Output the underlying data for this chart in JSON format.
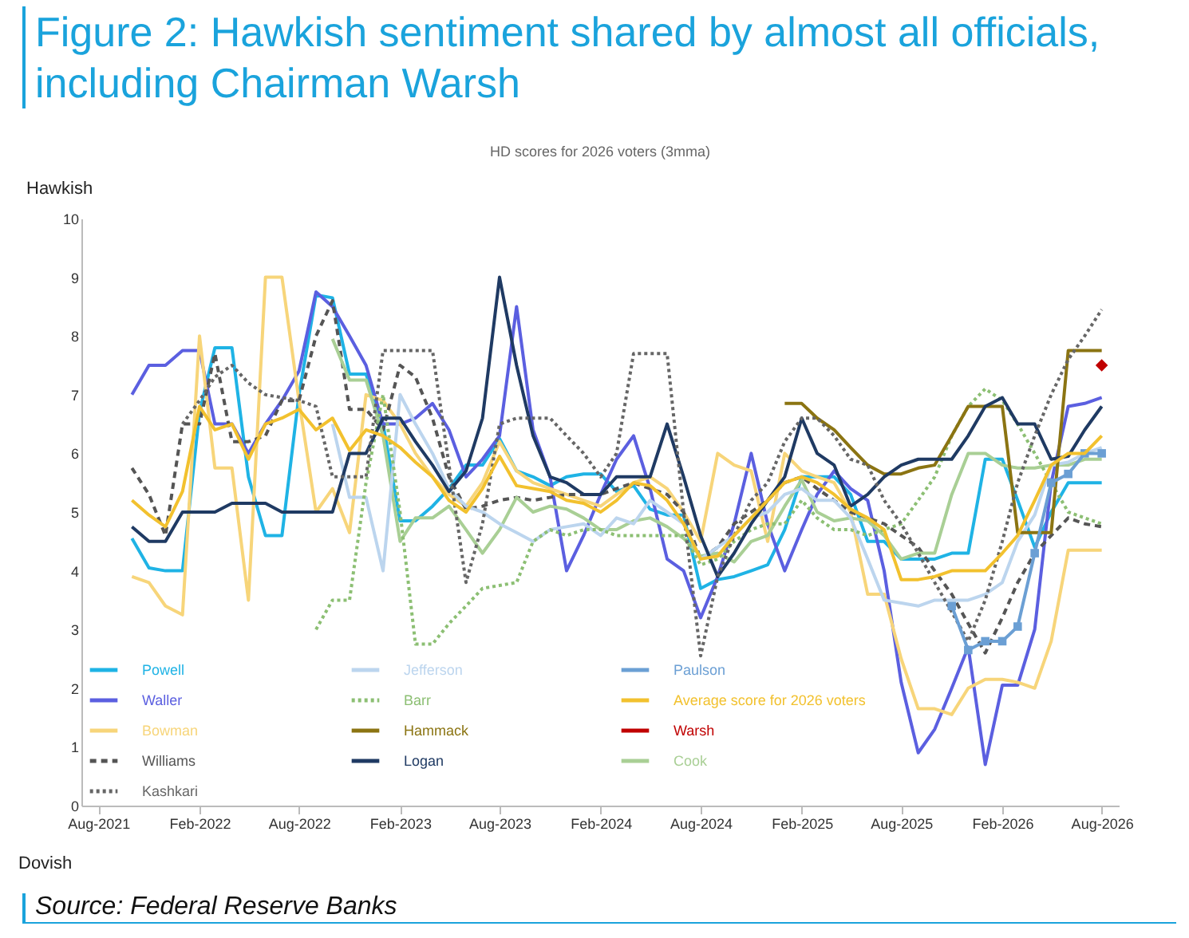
{
  "chart_data": {
    "type": "line",
    "title": "Figure 2: Hawkish sentiment shared by almost all officials, including Chairman Warsh",
    "subtitle": "HD scores for 2026 voters (3mma)",
    "ylabel": "Hawkish",
    "xlabel": "Dovish",
    "annotations": [
      "Source: Federal Reserve Banks"
    ],
    "x": [
      "2021-10",
      "2021-11",
      "2021-12",
      "2022-01",
      "2022-02",
      "2022-03",
      "2022-04",
      "2022-05",
      "2022-06",
      "2022-07",
      "2022-08",
      "2022-09",
      "2022-10",
      "2022-11",
      "2022-12",
      "2023-01",
      "2023-02",
      "2023-03",
      "2023-04",
      "2023-05",
      "2023-06",
      "2023-07",
      "2023-08",
      "2023-09",
      "2023-10",
      "2023-11",
      "2023-12",
      "2024-01",
      "2024-02",
      "2024-03",
      "2024-04",
      "2024-05",
      "2024-06",
      "2024-07",
      "2024-08",
      "2024-09",
      "2024-10",
      "2024-11",
      "2024-12",
      "2025-01",
      "2025-02",
      "2025-03",
      "2025-04",
      "2025-05",
      "2025-06",
      "2025-07",
      "2025-08",
      "2025-09",
      "2025-10",
      "2025-11",
      "2025-12",
      "2026-01",
      "2026-02",
      "2026-03",
      "2026-04",
      "2026-05",
      "2026-06",
      "2026-07",
      "2026-08"
    ],
    "xlim": [
      "2021-07",
      "2026-09"
    ],
    "xticks": [
      {
        "value": "2021-08",
        "label": "Aug-2021"
      },
      {
        "value": "2022-02",
        "label": "Feb-2022"
      },
      {
        "value": "2022-08",
        "label": "Aug-2022"
      },
      {
        "value": "2023-02",
        "label": "Feb-2023"
      },
      {
        "value": "2023-08",
        "label": "Aug-2023"
      },
      {
        "value": "2024-02",
        "label": "Feb-2024"
      },
      {
        "value": "2024-08",
        "label": "Aug-2024"
      },
      {
        "value": "2025-02",
        "label": "Feb-2025"
      },
      {
        "value": "2025-08",
        "label": "Aug-2025"
      },
      {
        "value": "2026-02",
        "label": "Feb-2026"
      },
      {
        "value": "2026-08",
        "label": "Aug-2026"
      }
    ],
    "ylim": [
      0,
      10
    ],
    "yticks": [
      0,
      1,
      2,
      3,
      4,
      5,
      6,
      7,
      8,
      9,
      10
    ],
    "legend": "bottom left",
    "line_style": "solid",
    "marker": "none",
    "series": [
      {
        "name": "Powell",
        "color": "#1fb3e5",
        "values": [
          4.55,
          4.05,
          4,
          4,
          6.7,
          7.8,
          7.8,
          5.6,
          4.6,
          4.6,
          7,
          8.7,
          8.65,
          7.35,
          7.35,
          6.5,
          4.85,
          4.85,
          5.1,
          5.4,
          5.8,
          5.8,
          6.25,
          5.7,
          5.6,
          5.45,
          5.6,
          5.65,
          5.65,
          5.35,
          5.45,
          5.05,
          4.95,
          4.95,
          3.7,
          3.85,
          3.9,
          4,
          4.1,
          4.7,
          5.6,
          5.6,
          5.6,
          5.3,
          4.5,
          4.5,
          4.2,
          4.2,
          4.2,
          4.3,
          4.3,
          5.9,
          5.9,
          5.2,
          4.4,
          5,
          5.5,
          5.5,
          5.5
        ]
      },
      {
        "name": "Waller",
        "color": "#5b5fe0",
        "values": [
          7,
          7.5,
          7.5,
          7.75,
          7.75,
          6.5,
          6.5,
          6,
          6.5,
          6.9,
          7.4,
          8.75,
          8.5,
          8,
          7.5,
          6.5,
          6.5,
          6.6,
          6.85,
          6.4,
          5.6,
          5.9,
          6.3,
          8.5,
          6.4,
          5.6,
          4,
          4.6,
          5.3,
          5.9,
          6.3,
          5.4,
          4.2,
          4,
          3.2,
          3.9,
          4.8,
          6,
          4.8,
          4,
          4.7,
          5.3,
          5.7,
          5.4,
          5.2,
          4,
          2.1,
          0.9,
          1.3,
          2,
          2.7,
          0.7,
          2.05,
          2.05,
          3,
          5.5,
          6.8,
          6.85,
          6.95
        ]
      },
      {
        "name": "Bowman",
        "color": "#f7d57a",
        "values": [
          3.9,
          3.8,
          3.4,
          3.25,
          8,
          5.75,
          5.75,
          3.5,
          9,
          9,
          6.9,
          5,
          5.4,
          4.65,
          7,
          6.9,
          6.5,
          6,
          5.6,
          5.3,
          5.1,
          5.5,
          6.2,
          5.7,
          5.5,
          5.4,
          5.3,
          5.2,
          5.1,
          5.3,
          5.5,
          5.6,
          5.4,
          5,
          4.5,
          6,
          5.8,
          5.7,
          4.5,
          6,
          5.7,
          5.6,
          5.5,
          5,
          3.6,
          3.6,
          2.5,
          1.65,
          1.65,
          1.55,
          2,
          2.15,
          2.15,
          2.1,
          2,
          2.8,
          4.35,
          4.35,
          4.35
        ]
      },
      {
        "name": "Williams",
        "color": "#555555",
        "line_style": "dashed",
        "values": [
          5.75,
          5.3,
          4.6,
          6.5,
          6.5,
          7.7,
          6.2,
          6.2,
          6.3,
          6.9,
          6.9,
          8,
          8.6,
          6.75,
          6.75,
          6.4,
          7.5,
          7.3,
          6.6,
          5.6,
          5.05,
          5.1,
          5.2,
          5.25,
          5.2,
          5.25,
          5.3,
          5.3,
          5.3,
          5.4,
          5.5,
          5.4,
          5.3,
          5,
          4.2,
          4.4,
          4.8,
          5,
          5.2,
          5.5,
          5.6,
          5.4,
          5.2,
          5,
          4.9,
          4.8,
          4.6,
          4.4,
          4,
          3.6,
          3.1,
          2.6,
          3.2,
          3.8,
          4.3,
          4.6,
          4.9,
          4.8,
          4.75
        ]
      },
      {
        "name": "Cook",
        "color": "#a9cf95",
        "values": [
          null,
          null,
          null,
          null,
          null,
          null,
          null,
          null,
          null,
          null,
          null,
          null,
          7.95,
          7.25,
          7.25,
          6.3,
          4.5,
          4.9,
          4.9,
          5.1,
          4.7,
          4.3,
          4.7,
          5.25,
          5,
          5.1,
          5.05,
          4.9,
          4.7,
          4.7,
          4.85,
          4.9,
          4.75,
          4.55,
          4.25,
          4.3,
          4.15,
          4.5,
          4.6,
          5.1,
          5.55,
          5,
          4.85,
          4.9,
          4.85,
          4.6,
          4.2,
          4.3,
          4.3,
          5.3,
          6,
          6,
          5.8,
          5.75,
          5.75,
          5.8,
          5.8,
          5.9,
          5.9
        ]
      },
      {
        "name": "Jefferson",
        "color": "#bcd5ee",
        "values": [
          null,
          null,
          null,
          null,
          null,
          null,
          null,
          null,
          null,
          null,
          null,
          null,
          6.5,
          5.25,
          5.25,
          4,
          7,
          6.5,
          6,
          5.4,
          5.1,
          5,
          4.8,
          4.65,
          4.5,
          4.7,
          4.75,
          4.8,
          4.6,
          4.9,
          4.8,
          5.2,
          5,
          4.8,
          4.2,
          4.4,
          4.6,
          4.9,
          5,
          5.3,
          5.4,
          5.2,
          5.2,
          4.9,
          4.2,
          3.5,
          3.45,
          3.4,
          3.5,
          3.5,
          3.5,
          3.6,
          3.8,
          4.5,
          4.95,
          5.8,
          5.85,
          6,
          6.1
        ]
      },
      {
        "name": "Barr",
        "color": "#8cbf73",
        "line_style": "dotted",
        "values": [
          null,
          null,
          null,
          null,
          null,
          null,
          null,
          null,
          null,
          null,
          null,
          3,
          3.5,
          3.5,
          5.5,
          7,
          5,
          2.75,
          2.75,
          3.1,
          3.4,
          3.7,
          3.75,
          3.8,
          4.5,
          4.7,
          4.6,
          4.7,
          4.7,
          4.6,
          4.6,
          4.6,
          4.6,
          4.6,
          4.1,
          4.2,
          4.5,
          4.7,
          4.8,
          4.8,
          5.2,
          4.9,
          4.7,
          4.7,
          4.6,
          4.7,
          4.8,
          5.2,
          5.6,
          6.3,
          6.8,
          7.1,
          6.9,
          6.5,
          6,
          5.5,
          5,
          4.9,
          4.8
        ]
      },
      {
        "name": "Hammack",
        "color": "#8b7412",
        "values": [
          null,
          null,
          null,
          null,
          null,
          null,
          null,
          null,
          null,
          null,
          null,
          null,
          null,
          null,
          null,
          null,
          null,
          null,
          null,
          null,
          null,
          null,
          null,
          null,
          null,
          null,
          null,
          null,
          null,
          null,
          null,
          null,
          null,
          null,
          null,
          null,
          null,
          null,
          null,
          6.85,
          6.85,
          6.6,
          6.4,
          6.1,
          5.8,
          5.65,
          5.65,
          5.75,
          5.8,
          6.3,
          6.8,
          6.8,
          6.8,
          4.65,
          4.65,
          4.65,
          7.75,
          7.75,
          7.75
        ]
      },
      {
        "name": "Logan",
        "color": "#1f3a63",
        "values": [
          4.75,
          4.5,
          4.5,
          5,
          5,
          5,
          5.15,
          5.15,
          5.15,
          5,
          5,
          5,
          5,
          6,
          6,
          6.6,
          6.6,
          6.2,
          5.8,
          5.35,
          5.7,
          6.6,
          9,
          7.5,
          6.3,
          5.6,
          5.5,
          5.3,
          5.3,
          5.6,
          5.6,
          5.6,
          6.5,
          5.6,
          4.6,
          3.9,
          4.3,
          4.8,
          5.2,
          5.6,
          6.6,
          6,
          5.8,
          5.1,
          5.3,
          5.6,
          5.8,
          5.9,
          5.9,
          5.9,
          6.3,
          6.8,
          6.95,
          6.5,
          6.5,
          5.9,
          5.95,
          6.4,
          6.8
        ]
      },
      {
        "name": "Kashkari",
        "color": "#666666",
        "line_style": "dotted",
        "values": [
          null,
          null,
          null,
          6.5,
          6.9,
          7.3,
          7.5,
          7.2,
          7,
          6.95,
          6.9,
          6.8,
          5.6,
          5.6,
          5.6,
          7.75,
          7.75,
          7.75,
          7.75,
          5.8,
          3.8,
          4.8,
          6.5,
          6.6,
          6.6,
          6.6,
          6.3,
          6,
          5.6,
          6,
          7.7,
          7.7,
          7.7,
          5,
          2.55,
          3.9,
          4.6,
          5.2,
          5.5,
          6.2,
          6.6,
          6.6,
          6.3,
          5.9,
          5.8,
          5.2,
          4.8,
          4.3,
          3.8,
          3.3,
          2.8,
          3.5,
          4.5,
          5.5,
          6.3,
          7,
          7.6,
          8,
          8.45
        ]
      },
      {
        "name": "Paulson",
        "color": "#6b9fd4",
        "marker": "square",
        "values": [
          null,
          null,
          null,
          null,
          null,
          null,
          null,
          null,
          null,
          null,
          null,
          null,
          null,
          null,
          null,
          null,
          null,
          null,
          null,
          null,
          null,
          null,
          null,
          null,
          null,
          null,
          null,
          null,
          null,
          null,
          null,
          null,
          null,
          null,
          null,
          null,
          null,
          null,
          null,
          null,
          null,
          null,
          null,
          null,
          null,
          null,
          null,
          null,
          null,
          3.4,
          2.65,
          2.8,
          2.8,
          3.05,
          4.3,
          5.5,
          5.65,
          6,
          6
        ]
      },
      {
        "name": "Average score for 2026 voters",
        "color": "#f2c12e",
        "values": [
          5.2,
          4.95,
          4.75,
          5.35,
          6.8,
          6.4,
          6.5,
          5.9,
          6.5,
          6.6,
          6.75,
          6.4,
          6.6,
          6.05,
          6.4,
          6.3,
          6.1,
          5.85,
          5.6,
          5.2,
          5,
          5.4,
          5.95,
          5.45,
          5.4,
          5.35,
          5.2,
          5.15,
          5,
          5.2,
          5.5,
          5.45,
          5.2,
          4.8,
          4.2,
          4.25,
          4.6,
          4.9,
          5.2,
          5.5,
          5.6,
          5.5,
          5.3,
          5.05,
          4.9,
          4.7,
          3.85,
          3.85,
          3.9,
          4,
          4,
          4,
          4.3,
          4.6,
          5.2,
          5.8,
          6,
          6,
          6.3
        ]
      },
      {
        "name": "Warsh",
        "color": "#c00000",
        "type": "scatter",
        "marker": "diamond",
        "x": [
          "2026-08"
        ],
        "values": [
          7.5
        ]
      }
    ]
  }
}
